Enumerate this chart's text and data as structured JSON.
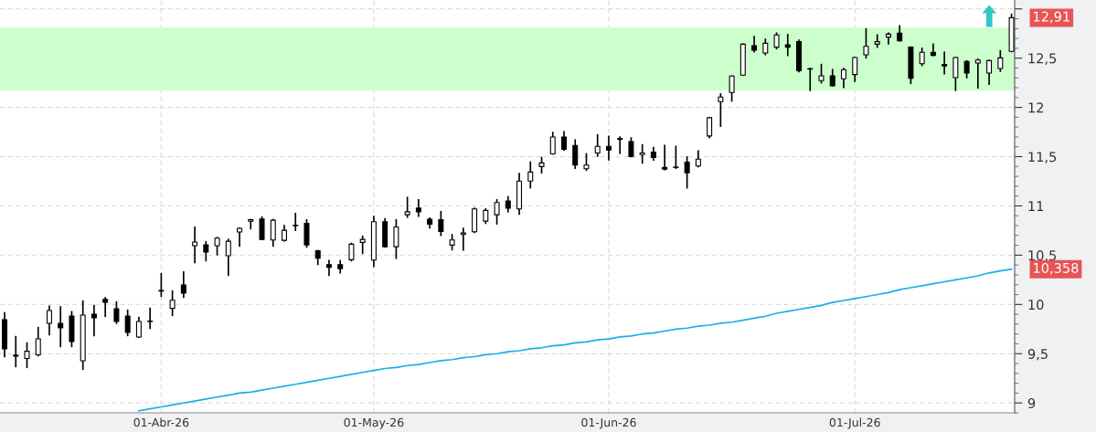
{
  "chart_data": {
    "type": "candlestick",
    "color": "#000000",
    "categories": [
      null,
      null,
      null,
      null,
      null,
      null,
      null,
      null,
      null,
      null,
      null,
      null,
      null,
      null,
      "01-Abr-26",
      null,
      null,
      null,
      null,
      null,
      null,
      null,
      null,
      null,
      null,
      null,
      null,
      null,
      null,
      null,
      null,
      null,
      null,
      "01-May-26",
      null,
      null,
      null,
      null,
      null,
      null,
      null,
      null,
      null,
      null,
      null,
      null,
      null,
      null,
      null,
      null,
      null,
      null,
      null,
      null,
      "01-Jun-26",
      null,
      null,
      null,
      null,
      null,
      null,
      null,
      null,
      null,
      null,
      null,
      null,
      null,
      null,
      null,
      null,
      null,
      null,
      null,
      null,
      null,
      "01-Jul-26",
      null,
      null,
      null,
      null,
      null,
      null,
      null,
      null,
      null,
      null,
      null,
      null,
      null,
      null
    ],
    "ohlc": [
      [
        9.846,
        9.914,
        9.472,
        9.549
      ],
      [
        9.475,
        9.673,
        9.37,
        9.485
      ],
      [
        9.451,
        9.608,
        9.361,
        9.525
      ],
      [
        9.488,
        9.765,
        9.481,
        9.651
      ],
      [
        9.809,
        9.981,
        9.694,
        9.938
      ],
      [
        9.809,
        9.975,
        9.574,
        9.762
      ],
      [
        9.883,
        9.926,
        9.574,
        9.623
      ],
      [
        9.429,
        10.034,
        9.343,
        9.892
      ],
      [
        9.901,
        9.988,
        9.685,
        9.864
      ],
      [
        10.052,
        10.068,
        9.88,
        10.022
      ],
      [
        9.957,
        10.025,
        9.809,
        9.827
      ],
      [
        9.883,
        9.941,
        9.685,
        9.716
      ],
      [
        9.67,
        9.867,
        9.667,
        9.827
      ],
      [
        9.827,
        9.96,
        9.759,
        9.827
      ],
      [
        10.136,
        10.312,
        10.083,
        10.142
      ],
      [
        9.96,
        10.136,
        9.889,
        10.043
      ],
      [
        10.198,
        10.33,
        10.074,
        10.114
      ],
      [
        10.596,
        10.784,
        10.426,
        10.633
      ],
      [
        10.605,
        10.636,
        10.444,
        10.531
      ],
      [
        10.596,
        10.679,
        10.506,
        10.673
      ],
      [
        10.494,
        10.66,
        10.296,
        10.642
      ],
      [
        10.735,
        10.775,
        10.593,
        10.772
      ],
      [
        10.846,
        10.861,
        10.769,
        10.861
      ],
      [
        10.867,
        10.886,
        10.66,
        10.66
      ],
      [
        10.654,
        10.861,
        10.593,
        10.855
      ],
      [
        10.651,
        10.799,
        10.645,
        10.753
      ],
      [
        10.799,
        10.923,
        10.753,
        10.799
      ],
      [
        10.824,
        10.858,
        10.583,
        10.605
      ],
      [
        10.546,
        10.546,
        10.407,
        10.469
      ],
      [
        10.404,
        10.444,
        10.296,
        10.377
      ],
      [
        10.404,
        10.444,
        10.321,
        10.364
      ],
      [
        10.454,
        10.62,
        10.444,
        10.611
      ],
      [
        10.63,
        10.691,
        10.519,
        10.66
      ],
      [
        10.451,
        10.892,
        10.386,
        10.84
      ],
      [
        10.84,
        10.87,
        10.583,
        10.586
      ],
      [
        10.586,
        10.858,
        10.469,
        10.787
      ],
      [
        10.91,
        11.086,
        10.886,
        10.941
      ],
      [
        10.978,
        11.062,
        10.895,
        10.941
      ],
      [
        10.864,
        10.877,
        10.778,
        10.815
      ],
      [
        10.861,
        10.941,
        10.701,
        10.741
      ],
      [
        10.602,
        10.707,
        10.556,
        10.654
      ],
      [
        10.71,
        10.772,
        10.552,
        10.725
      ],
      [
        10.738,
        10.975,
        10.731,
        10.969
      ],
      [
        10.846,
        10.969,
        10.824,
        10.954
      ],
      [
        10.91,
        11.062,
        10.818,
        11.034
      ],
      [
        11.049,
        11.093,
        10.941,
        10.978
      ],
      [
        10.969,
        11.328,
        10.917,
        11.252
      ],
      [
        11.252,
        11.445,
        11.184,
        11.344
      ],
      [
        11.399,
        11.491,
        11.337,
        11.436
      ],
      [
        11.528,
        11.745,
        11.528,
        11.699
      ],
      [
        11.699,
        11.752,
        11.567,
        11.574
      ],
      [
        11.613,
        11.669,
        11.383,
        11.414
      ],
      [
        11.377,
        11.528,
        11.362,
        11.414
      ],
      [
        11.537,
        11.721,
        11.506,
        11.604
      ],
      [
        11.604,
        11.706,
        11.469,
        11.567
      ],
      [
        11.675,
        11.699,
        11.534,
        11.684
      ],
      [
        11.653,
        11.69,
        11.5,
        11.5
      ],
      [
        11.521,
        11.62,
        11.436,
        11.537
      ],
      [
        11.546,
        11.592,
        11.466,
        11.491
      ],
      [
        11.39,
        11.613,
        11.368,
        11.374
      ],
      [
        11.39,
        11.604,
        11.383,
        11.39
      ],
      [
        11.445,
        11.497,
        11.184,
        11.337
      ],
      [
        11.405,
        11.558,
        11.399,
        11.475
      ],
      [
        11.71,
        11.895,
        11.694,
        11.895
      ],
      [
        12.059,
        12.136,
        11.809,
        12.105
      ],
      [
        12.151,
        12.318,
        12.065,
        12.318
      ],
      [
        12.327,
        12.642,
        12.327,
        12.642
      ],
      [
        12.627,
        12.719,
        12.565,
        12.58
      ],
      [
        12.552,
        12.691,
        12.537,
        12.651
      ],
      [
        12.611,
        12.753,
        12.596,
        12.735
      ],
      [
        12.636,
        12.738,
        12.528,
        12.611
      ],
      [
        12.667,
        12.682,
        12.364,
        12.373
      ],
      [
        12.389,
        12.395,
        12.173,
        12.389
      ],
      [
        12.272,
        12.435,
        12.25,
        12.321
      ],
      [
        12.321,
        12.383,
        12.219,
        12.219
      ],
      [
        12.29,
        12.395,
        12.204,
        12.383
      ],
      [
        12.333,
        12.506,
        12.265,
        12.506
      ],
      [
        12.534,
        12.796,
        12.503,
        12.62
      ],
      [
        12.642,
        12.735,
        12.611,
        12.667
      ],
      [
        12.713,
        12.753,
        12.645,
        12.744
      ],
      [
        12.753,
        12.827,
        12.676,
        12.676
      ],
      [
        12.611,
        12.611,
        12.244,
        12.296
      ],
      [
        12.444,
        12.599,
        12.426,
        12.559
      ],
      [
        12.559,
        12.642,
        12.528,
        12.528
      ],
      [
        12.435,
        12.559,
        12.343,
        12.42
      ],
      [
        12.302,
        12.506,
        12.173,
        12.506
      ],
      [
        12.466,
        12.472,
        12.302,
        12.349
      ],
      [
        12.451,
        12.488,
        12.198,
        12.481
      ],
      [
        12.349,
        12.475,
        12.235,
        12.475
      ],
      [
        12.395,
        12.574,
        12.367,
        12.503
      ],
      [
        12.568,
        12.944,
        12.568,
        12.91
      ]
    ],
    "series": [
      {
        "type": "line",
        "color": "#1aaee8",
        "values": [
          null,
          null,
          null,
          null,
          null,
          null,
          null,
          null,
          null,
          null,
          null,
          null,
          8.92,
          8.94,
          8.96,
          8.98,
          9.0,
          9.02,
          9.04,
          9.06,
          9.08,
          9.1,
          9.11,
          9.13,
          9.15,
          9.17,
          9.19,
          9.21,
          9.23,
          9.25,
          9.27,
          9.29,
          9.31,
          9.33,
          9.35,
          9.36,
          9.38,
          9.39,
          9.41,
          9.43,
          9.44,
          9.46,
          9.47,
          9.49,
          9.5,
          9.52,
          9.53,
          9.55,
          9.56,
          9.58,
          9.59,
          9.61,
          9.62,
          9.64,
          9.65,
          9.67,
          9.68,
          9.7,
          9.71,
          9.73,
          9.75,
          9.76,
          9.78,
          9.79,
          9.81,
          9.82,
          9.84,
          9.86,
          9.88,
          9.91,
          9.93,
          9.95,
          9.97,
          9.99,
          10.02,
          10.04,
          10.06,
          10.08,
          10.1,
          10.12,
          10.15,
          10.17,
          10.19,
          10.21,
          10.23,
          10.25,
          10.27,
          10.29,
          10.32,
          10.34,
          10.358
        ]
      }
    ],
    "ylim": [
      8.9,
      13.09
    ],
    "yticks": [
      9,
      {
        "value": 9.5,
        "label": "9,5"
      },
      10,
      {
        "value": 10.5,
        "label": "10,5"
      },
      11,
      {
        "value": 11.5,
        "label": "11,5"
      },
      12,
      {
        "value": 12.5,
        "label": "12,5"
      },
      {
        "value": 13,
        "label": null
      }
    ],
    "bands": [
      {
        "axis": "y",
        "from": 12.17,
        "to": 12.81,
        "color": "#ccffcc"
      }
    ],
    "annotations": [
      "12,91",
      "10,358"
    ],
    "grid": true,
    "legend": false
  }
}
